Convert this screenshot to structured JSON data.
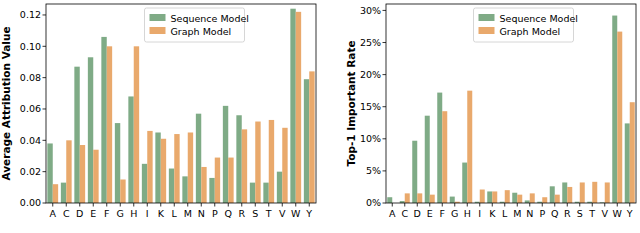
{
  "chart_data": [
    {
      "type": "bar",
      "y_label": "Average Attribution Value",
      "categories": [
        "A",
        "C",
        "D",
        "E",
        "F",
        "G",
        "H",
        "I",
        "K",
        "L",
        "M",
        "N",
        "P",
        "Q",
        "R",
        "S",
        "T",
        "V",
        "W",
        "Y"
      ],
      "series": [
        {
          "name": "Sequence Model",
          "color": "#7fab86",
          "values": [
            0.038,
            0.013,
            0.087,
            0.093,
            0.106,
            0.051,
            0.068,
            0.025,
            0.045,
            0.022,
            0.017,
            0.057,
            0.016,
            0.062,
            0.056,
            0.013,
            0.013,
            0.02,
            0.124,
            0.079
          ]
        },
        {
          "name": "Graph Model",
          "color": "#e9a96c",
          "values": [
            0.012,
            0.04,
            0.037,
            0.034,
            0.1,
            0.015,
            0.1,
            0.046,
            0.041,
            0.044,
            0.045,
            0.023,
            0.029,
            0.029,
            0.047,
            0.052,
            0.053,
            0.048,
            0.122,
            0.084
          ]
        }
      ],
      "ylim": [
        0,
        0.127
      ],
      "yticks": [
        {
          "value": 0,
          "label": "0.00"
        },
        {
          "value": 0.02,
          "label": "0.02"
        },
        {
          "value": 0.04,
          "label": "0.04"
        },
        {
          "value": 0.06,
          "label": "0.06"
        },
        {
          "value": 0.08,
          "label": "0.08"
        },
        {
          "value": 0.1,
          "label": "0.10"
        },
        {
          "value": 0.12,
          "label": "0.12"
        }
      ],
      "legend": "upper center"
    },
    {
      "type": "bar",
      "y_label": "Top-1 Important Rate",
      "categories": [
        "A",
        "C",
        "D",
        "E",
        "F",
        "G",
        "H",
        "I",
        "K",
        "L",
        "M",
        "N",
        "P",
        "Q",
        "R",
        "S",
        "T",
        "V",
        "W",
        "Y"
      ],
      "series": [
        {
          "name": "Sequence Model",
          "color": "#7fab86",
          "values": [
            0.9,
            0.3,
            9.7,
            13.6,
            17.2,
            1.0,
            6.3,
            0.2,
            1.8,
            0.2,
            1.6,
            0.4,
            0.2,
            2.6,
            3.2,
            0.2,
            0.2,
            0.1,
            29.2,
            12.4
          ]
        },
        {
          "name": "Graph Model",
          "color": "#e9a96c",
          "values": [
            0,
            1.5,
            1.5,
            1.3,
            14.3,
            0.2,
            17.5,
            2.1,
            1.8,
            2.0,
            1.3,
            1.5,
            0.9,
            1.3,
            2.5,
            3.2,
            3.3,
            3.2,
            26.7,
            15.7
          ]
        }
      ],
      "ylim": [
        0,
        31
      ],
      "yticks": [
        {
          "value": 0,
          "label": "0%"
        },
        {
          "value": 5,
          "label": "5%"
        },
        {
          "value": 10,
          "label": "10%"
        },
        {
          "value": 15,
          "label": "15%"
        },
        {
          "value": 20,
          "label": "20%"
        },
        {
          "value": 25,
          "label": "25%"
        },
        {
          "value": 30,
          "label": "30%"
        }
      ],
      "legend": "upper center"
    }
  ]
}
